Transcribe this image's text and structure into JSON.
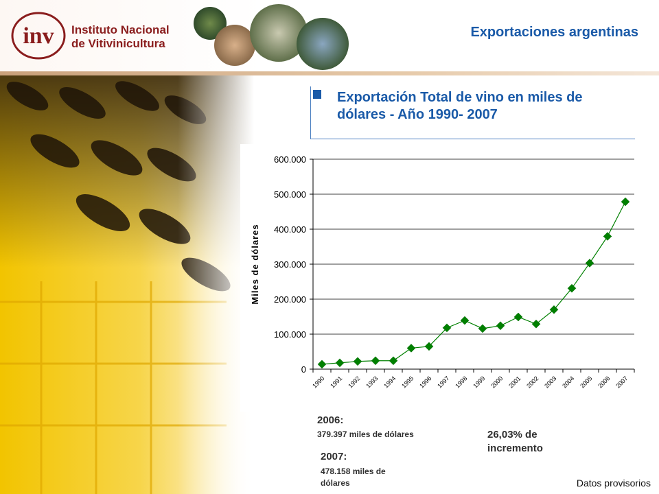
{
  "header": {
    "org_line1": "Instituto Nacional",
    "org_line2": "de Vitivinicultura",
    "logo_letters": "inv",
    "section_title": "Exportaciones argentinas"
  },
  "main": {
    "title": "Exportación Total de vino en miles de dólares - Año 1990- 2007"
  },
  "notes": {
    "y2006_label": "2006:",
    "y2006_value": "379.397 miles de dólares",
    "y2007_label": "2007:",
    "y2007_value": "478.158 miles de dólares",
    "increase": "26,03% de incremento"
  },
  "footer": "Datos provisorios",
  "colors": {
    "accent": "#1a5aa8",
    "brand": "#8a1d1d",
    "series": "#008000"
  },
  "chart_data": {
    "type": "line",
    "title": "",
    "xlabel": "",
    "ylabel": "Miles de dólares",
    "ylim": [
      0,
      600000
    ],
    "grid": true,
    "x": [
      "1990",
      "1991",
      "1992",
      "1993",
      "1994",
      "1995",
      "1996",
      "1997",
      "1998",
      "1999",
      "2000",
      "2001",
      "2002",
      "2003",
      "2004",
      "2005",
      "2006",
      "2007"
    ],
    "y_ticks": [
      0,
      100000,
      200000,
      300000,
      400000,
      500000,
      600000
    ],
    "y_tick_labels": [
      "0",
      "100.000",
      "200.000",
      "300.000",
      "400.000",
      "500.000",
      "600.000"
    ],
    "series": [
      {
        "values": [
          14000,
          18000,
          22000,
          24000,
          24000,
          60000,
          65000,
          118000,
          139000,
          116000,
          124000,
          149000,
          129000,
          170000,
          231000,
          303000,
          379397,
          478158
        ]
      }
    ]
  }
}
